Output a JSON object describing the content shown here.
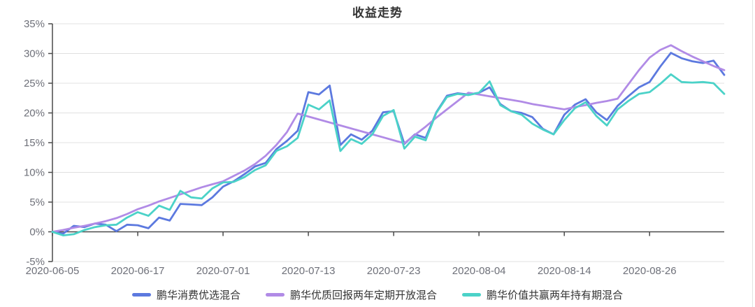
{
  "chart_data": {
    "type": "line",
    "title": "收益走势",
    "legend_position": "bottom",
    "grid": true,
    "n_points": 64,
    "ylim": [
      -5,
      35
    ],
    "y_ticks": [
      35,
      30,
      25,
      20,
      15,
      10,
      5,
      0,
      -5
    ],
    "y_tick_suffix": "%",
    "x_tick_labels": [
      "2020-06-05",
      "2020-06-17",
      "2020-07-01",
      "2020-07-13",
      "2020-07-23",
      "2020-08-04",
      "2020-08-14",
      "2020-08-26"
    ],
    "x_tick_indices": [
      0,
      8,
      16,
      24,
      32,
      40,
      48,
      56
    ],
    "axis": {
      "axis_color": "#4a4a4a",
      "grid_color": "#e0e0e0",
      "label_color": "#6e7079"
    },
    "series": [
      {
        "name": "鹏华消费优选混合",
        "color": "#5c79df",
        "values": [
          0,
          -0.3,
          1.0,
          0.8,
          1.4,
          1.2,
          0.1,
          1.2,
          1.1,
          0.6,
          2.4,
          1.9,
          4.7,
          4.6,
          4.5,
          5.8,
          7.6,
          8.5,
          9.7,
          11.0,
          11.6,
          13.9,
          15.3,
          17.0,
          23.5,
          23.1,
          24.6,
          14.6,
          16.4,
          15.5,
          17.0,
          20.1,
          20.3,
          14.8,
          16.4,
          15.8,
          20.1,
          22.9,
          23.3,
          23.1,
          23.4,
          24.3,
          21.5,
          20.3,
          20.0,
          19.3,
          17.3,
          16.4,
          19.7,
          21.4,
          22.3,
          20.1,
          18.8,
          21.2,
          22.8,
          24.3,
          25.2,
          27.8,
          30.1,
          29.2,
          28.7,
          28.4,
          28.8,
          26.4
        ]
      },
      {
        "name": "鹏华优质回报两年定期开放混合",
        "color": "#b18be6",
        "values": [
          0,
          0.3,
          0.7,
          1.0,
          1.4,
          1.8,
          2.3,
          3.0,
          3.8,
          4.4,
          5.1,
          5.7,
          6.3,
          6.9,
          7.5,
          8.0,
          8.5,
          9.4,
          10.3,
          11.4,
          12.8,
          14.6,
          16.8,
          19.9,
          19.4,
          18.9,
          18.4,
          17.9,
          17.4,
          16.9,
          16.4,
          15.9,
          15.4,
          14.9,
          16.3,
          17.7,
          19.2,
          20.6,
          22.0,
          23.4,
          23.1,
          22.8,
          22.5,
          22.2,
          21.9,
          21.5,
          21.2,
          20.9,
          20.6,
          21.0,
          21.3,
          21.7,
          22.0,
          22.4,
          24.8,
          27.2,
          29.3,
          30.6,
          31.4,
          30.4,
          29.5,
          28.7,
          27.9,
          27.2
        ]
      },
      {
        "name": "鹏华价值共赢两年持有期混合",
        "color": "#4bd2c8",
        "values": [
          0,
          -0.6,
          -0.4,
          0.3,
          0.8,
          1.1,
          1.2,
          2.4,
          3.3,
          2.7,
          4.4,
          3.7,
          6.9,
          5.8,
          5.6,
          7.3,
          8.3,
          8.4,
          9.2,
          10.4,
          11.2,
          13.6,
          14.4,
          15.8,
          21.4,
          20.6,
          22.1,
          13.6,
          15.6,
          14.8,
          16.4,
          19.5,
          20.5,
          14.0,
          16.0,
          15.4,
          20.0,
          22.7,
          23.2,
          23.0,
          23.4,
          25.3,
          21.3,
          20.3,
          19.7,
          18.2,
          17.2,
          16.4,
          18.8,
          20.8,
          21.8,
          19.5,
          17.9,
          20.6,
          22.0,
          23.2,
          23.5,
          24.9,
          26.5,
          25.2,
          25.1,
          25.2,
          25.0,
          23.2
        ]
      }
    ]
  }
}
